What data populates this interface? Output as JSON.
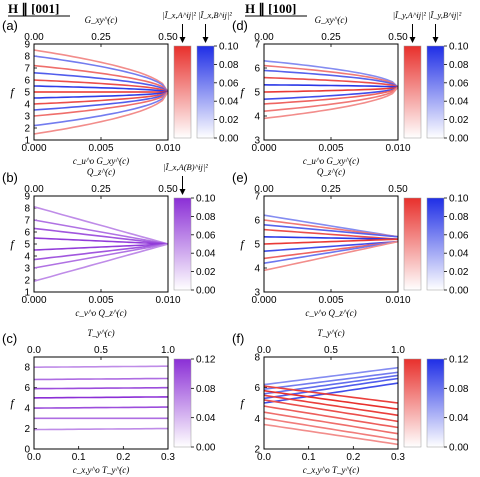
{
  "headers": {
    "left": "H ∥ [001]",
    "right": "H ∥ [100]"
  },
  "colors": {
    "red": "#e8302c",
    "blue": "#1f2ee6",
    "purple": "#8b2fd6",
    "red_light": "#f4c4c2",
    "blue_light": "#c7caf6",
    "purple_light": "#e2c6f6"
  },
  "chart_data": [
    {
      "id": "a",
      "type": "line",
      "panel_label": "(a)",
      "xlabel": "c_u^o G_xy^(c)",
      "top_label": "G_xy^(c)",
      "ylabel": "f",
      "xlim": [
        0,
        0.01
      ],
      "ylim": [
        1,
        9
      ],
      "xticks": [
        "0.000",
        "0.005",
        "0.010"
      ],
      "top_ticks": [
        "0.00",
        "0.25",
        "0.50"
      ],
      "yticks": [
        1,
        2,
        3,
        4,
        5,
        6,
        7,
        8,
        9
      ],
      "legend_text": "|Ĩ_x,A^ij|² |Ĩ_x,B^ij|²",
      "colorbars": [
        "red",
        "blue"
      ],
      "cbar_ticks": [
        "0.10",
        "0.08",
        "0.06",
        "0.04",
        "0.02",
        "0.00"
      ],
      "style": "fan",
      "series": [
        {
          "color": "red",
          "start": 8.5,
          "end": 5.0
        },
        {
          "color": "blue",
          "start": 8.0,
          "end": 5.0
        },
        {
          "color": "red",
          "start": 7.2,
          "end": 5.0
        },
        {
          "color": "blue",
          "start": 6.6,
          "end": 5.0
        },
        {
          "color": "red",
          "start": 6.0,
          "end": 5.0
        },
        {
          "color": "blue",
          "start": 5.5,
          "end": 5.0
        },
        {
          "color": "red",
          "start": 5.0,
          "end": 5.0
        },
        {
          "color": "blue",
          "start": 4.5,
          "end": 5.0
        },
        {
          "color": "red",
          "start": 4.0,
          "end": 5.0
        },
        {
          "color": "blue",
          "start": 3.5,
          "end": 5.0
        },
        {
          "color": "red",
          "start": 3.0,
          "end": 5.0
        },
        {
          "color": "blue",
          "start": 2.2,
          "end": 5.0
        },
        {
          "color": "red",
          "start": 1.5,
          "end": 5.0
        }
      ]
    },
    {
      "id": "b",
      "type": "line",
      "panel_label": "(b)",
      "xlabel": "c_v^o Q_z^(c)",
      "top_label": "Q_z^(c)",
      "ylabel": "f",
      "xlim": [
        0,
        0.01
      ],
      "ylim": [
        1,
        9
      ],
      "xticks": [
        "0.000",
        "0.005",
        "0.010"
      ],
      "top_ticks": [
        "0.00",
        "0.25",
        "0.50"
      ],
      "yticks": [
        1,
        2,
        3,
        4,
        5,
        6,
        7,
        8,
        9
      ],
      "legend_text": "|Ĩ_x,A(B)^ij|²",
      "colorbars": [
        "purple"
      ],
      "cbar_ticks": [
        "0.10",
        "0.08",
        "0.06",
        "0.04",
        "0.02",
        "0.00"
      ],
      "style": "linear",
      "series": [
        {
          "color": "purple",
          "start": 8.1,
          "end": 5.0
        },
        {
          "color": "purple",
          "start": 7.0,
          "end": 5.0
        },
        {
          "color": "purple",
          "start": 6.3,
          "end": 5.0
        },
        {
          "color": "purple",
          "start": 5.5,
          "end": 5.0
        },
        {
          "color": "purple",
          "start": 4.5,
          "end": 5.0
        },
        {
          "color": "purple",
          "start": 3.7,
          "end": 5.0
        },
        {
          "color": "purple",
          "start": 3.0,
          "end": 5.0
        },
        {
          "color": "purple",
          "start": 1.9,
          "end": 5.0
        }
      ]
    },
    {
      "id": "c",
      "type": "line",
      "panel_label": "(c)",
      "xlabel": "c_x,y^o T_y^(c)",
      "top_label": "T_y^(c)",
      "ylabel": "f",
      "xlim": [
        0,
        0.3
      ],
      "ylim": [
        0,
        9
      ],
      "xticks": [
        "0.0",
        "0.1",
        "0.2",
        "0.3"
      ],
      "top_ticks": [
        "0.0",
        "0.5",
        "1.0"
      ],
      "yticks": [
        0,
        2,
        4,
        6,
        8
      ],
      "legend_text": "",
      "colorbars": [
        "purple"
      ],
      "cbar_ticks": [
        "0.12",
        "0.08",
        "0.04",
        "0.00"
      ],
      "style": "flat",
      "series": [
        {
          "color": "purple",
          "start": 8.0,
          "end": 8.1
        },
        {
          "color": "purple",
          "start": 6.8,
          "end": 6.9
        },
        {
          "color": "purple",
          "start": 5.9,
          "end": 6.0
        },
        {
          "color": "purple",
          "start": 5.0,
          "end": 5.1
        },
        {
          "color": "purple",
          "start": 4.0,
          "end": 4.1
        },
        {
          "color": "purple",
          "start": 3.0,
          "end": 3.0
        },
        {
          "color": "purple",
          "start": 1.9,
          "end": 2.0
        }
      ]
    },
    {
      "id": "d",
      "type": "line",
      "panel_label": "(d)",
      "xlabel": "c_u^o G_xy^(c)",
      "top_label": "G_xy^(c)",
      "ylabel": "f",
      "xlim": [
        0,
        0.01
      ],
      "ylim": [
        3,
        7
      ],
      "xticks": [
        "0.000",
        "0.005",
        "0.010"
      ],
      "top_ticks": [
        "0.00",
        "0.25",
        "0.50"
      ],
      "yticks": [
        3,
        4,
        5,
        6,
        7
      ],
      "legend_text": "|Ĩ_y,A^ij|² |Ĩ_y,B^ij|²",
      "colorbars": [
        "red",
        "blue"
      ],
      "cbar_ticks": [
        "0.10",
        "0.08",
        "0.06",
        "0.04",
        "0.02",
        "0.00"
      ],
      "style": "fan",
      "series": [
        {
          "color": "blue",
          "start": 6.3,
          "end": 5.2
        },
        {
          "color": "red",
          "start": 6.1,
          "end": 5.2
        },
        {
          "color": "blue",
          "start": 5.9,
          "end": 5.2
        },
        {
          "color": "red",
          "start": 5.6,
          "end": 5.2
        },
        {
          "color": "blue",
          "start": 5.3,
          "end": 5.2
        },
        {
          "color": "red",
          "start": 5.0,
          "end": 5.2
        },
        {
          "color": "blue",
          "start": 4.7,
          "end": 5.2
        },
        {
          "color": "red",
          "start": 4.5,
          "end": 5.2
        },
        {
          "color": "red",
          "start": 4.2,
          "end": 5.2
        },
        {
          "color": "red",
          "start": 3.9,
          "end": 5.2
        }
      ]
    },
    {
      "id": "e",
      "type": "line",
      "panel_label": "(e)",
      "xlabel": "c_v^o Q_z^(c)",
      "top_label": "Q_z^(c)",
      "ylabel": "f",
      "xlim": [
        0,
        0.01
      ],
      "ylim": [
        3,
        7
      ],
      "xticks": [
        "0.000",
        "0.005",
        "0.010"
      ],
      "top_ticks": [
        "0.00",
        "0.25",
        "0.50"
      ],
      "yticks": [
        3,
        4,
        5,
        6,
        7
      ],
      "legend_text": "",
      "colorbars": [
        "red",
        "blue"
      ],
      "cbar_ticks": [
        "0.10",
        "0.08",
        "0.06",
        "0.04",
        "0.02",
        "0.00"
      ],
      "style": "linear",
      "series": [
        {
          "color": "blue",
          "start": 6.2,
          "end": 5.3
        },
        {
          "color": "red",
          "start": 6.0,
          "end": 5.3
        },
        {
          "color": "blue",
          "start": 5.8,
          "end": 5.3
        },
        {
          "color": "red",
          "start": 5.6,
          "end": 5.2
        },
        {
          "color": "blue",
          "start": 5.3,
          "end": 5.2
        },
        {
          "color": "red",
          "start": 5.0,
          "end": 5.2
        },
        {
          "color": "blue",
          "start": 4.7,
          "end": 5.1
        },
        {
          "color": "red",
          "start": 4.4,
          "end": 5.1
        },
        {
          "color": "blue",
          "start": 4.2,
          "end": 5.1
        },
        {
          "color": "red",
          "start": 3.9,
          "end": 5.1
        }
      ]
    },
    {
      "id": "f",
      "type": "line",
      "panel_label": "(f)",
      "xlabel": "c_x,y^o T_y^(c)",
      "top_label": "T_y^(c)",
      "ylabel": "f",
      "xlim": [
        0,
        0.3
      ],
      "ylim": [
        2,
        8
      ],
      "xticks": [
        "0.0",
        "0.1",
        "0.2",
        "0.3"
      ],
      "top_ticks": [
        "0.0",
        "0.5",
        "1.0"
      ],
      "yticks": [
        2,
        4,
        6,
        8
      ],
      "legend_text": "",
      "colorbars": [
        "red",
        "blue"
      ],
      "cbar_ticks": [
        "0.12",
        "0.08",
        "0.04",
        "0.00"
      ],
      "style": "linear",
      "series": [
        {
          "color": "blue",
          "start": 6.2,
          "end": 7.3
        },
        {
          "color": "blue",
          "start": 5.9,
          "end": 7.0
        },
        {
          "color": "blue",
          "start": 5.6,
          "end": 6.8
        },
        {
          "color": "blue",
          "start": 5.3,
          "end": 6.6
        },
        {
          "color": "blue",
          "start": 5.0,
          "end": 6.3
        },
        {
          "color": "red",
          "start": 6.1,
          "end": 5.0
        },
        {
          "color": "red",
          "start": 5.8,
          "end": 4.6
        },
        {
          "color": "red",
          "start": 5.5,
          "end": 4.2
        },
        {
          "color": "red",
          "start": 5.2,
          "end": 3.8
        },
        {
          "color": "red",
          "start": 4.8,
          "end": 3.4
        },
        {
          "color": "red",
          "start": 4.4,
          "end": 3.0
        },
        {
          "color": "red",
          "start": 4.0,
          "end": 2.6
        },
        {
          "color": "red",
          "start": 3.6,
          "end": 2.3
        }
      ]
    }
  ]
}
